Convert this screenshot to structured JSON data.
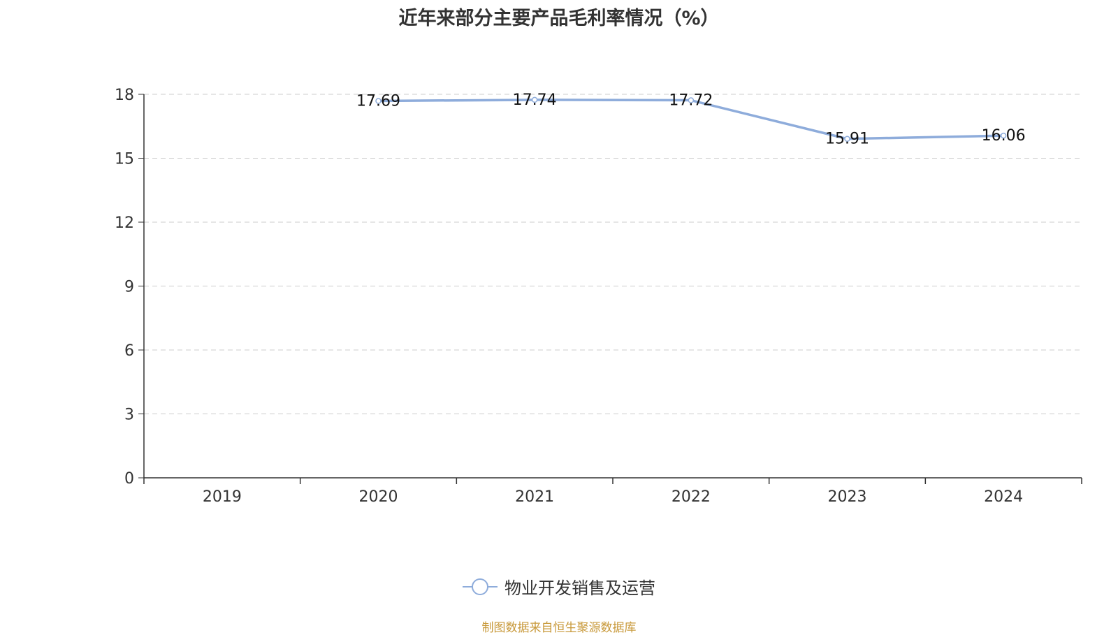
{
  "chart_data": {
    "type": "line",
    "title": "近年来部分主要产品毛利率情况（%）",
    "categories": [
      "2019",
      "2020",
      "2021",
      "2022",
      "2023",
      "2024"
    ],
    "series": [
      {
        "name": "物业开发销售及运营",
        "values": [
          null,
          17.69,
          17.74,
          17.72,
          15.91,
          16.06
        ],
        "labels": [
          "",
          "17.69",
          "17.74",
          "17.72",
          "15.91",
          "16.06"
        ],
        "color": "#8eacdb"
      }
    ],
    "yticks": [
      "0",
      "3",
      "6",
      "9",
      "12",
      "15",
      "18"
    ],
    "ylim": [
      0,
      18
    ],
    "grid": true,
    "legend_position": "bottom-center"
  },
  "source": "制图数据来自恒生聚源数据库",
  "colors": {
    "axis": "#333333",
    "grid": "#cccccc",
    "source": "#c8993a"
  }
}
